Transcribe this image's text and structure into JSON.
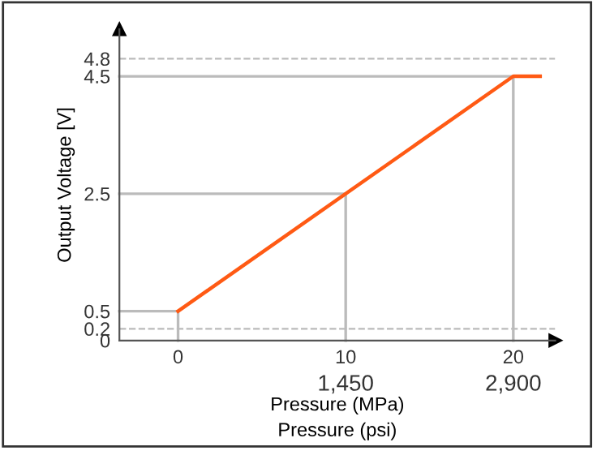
{
  "chart_data": {
    "type": "line",
    "xlabel": "Pressure (MPa)",
    "x2label": "Pressure (psi)",
    "ylabel": "Output Voltage [V]",
    "x2lim": [
      -507.5,
      3262.5
    ],
    "x2ticks": [
      {
        "value": 1450,
        "label": "1,450"
      },
      {
        "value": 2900,
        "label": "2,900"
      }
    ],
    "xlim": [
      -3.5,
      22.5
    ],
    "ylim": [
      0,
      5.3
    ],
    "xticks": [
      0,
      10,
      20
    ],
    "yticks": [
      0,
      0.2,
      0.5,
      2.5,
      4.5,
      4.8
    ],
    "series": [
      {
        "color": "#bbbbbb",
        "x": [
          -3.5,
          0,
          0
        ],
        "values": [
          0.5,
          0.5,
          0
        ]
      },
      {
        "color": "#bbbbbb",
        "x": [
          -3.5,
          10,
          10
        ],
        "values": [
          2.5,
          2.5,
          0
        ]
      },
      {
        "color": "#bbbbbb",
        "x": [
          -3.5,
          20,
          20
        ],
        "values": [
          4.5,
          4.5,
          0
        ]
      },
      {
        "color": "#ff5a14",
        "x": [
          0,
          20,
          21.6
        ],
        "values": [
          0.5,
          4.5,
          4.5
        ]
      }
    ],
    "ref_lines": [
      {
        "axis": "y",
        "value": 0.2,
        "color": "#bbbbbb",
        "line_style": "dashed"
      },
      {
        "axis": "y",
        "value": 4.8,
        "color": "#bbbbbb",
        "line_style": "dashed"
      }
    ],
    "grid": false,
    "legend": false,
    "marker": "none",
    "line_style": "solid"
  }
}
